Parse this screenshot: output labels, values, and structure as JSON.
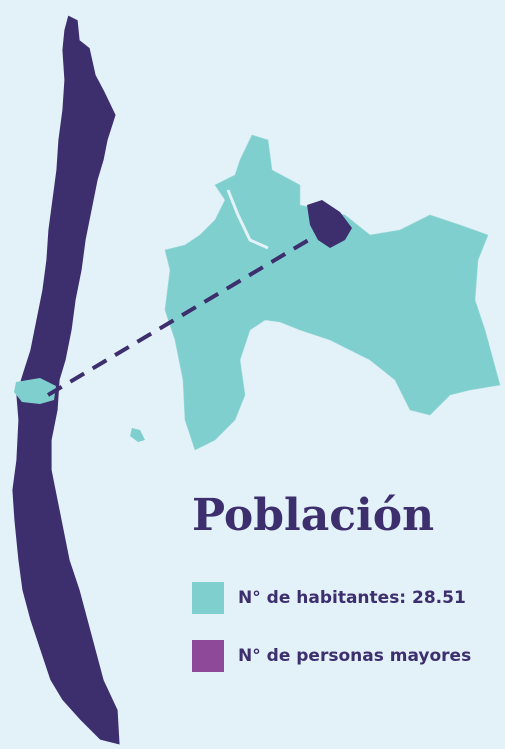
{
  "title": "Población",
  "legend": [
    {
      "label": "N° de habitantes: 28.51"
    },
    {
      "label": "N° de personas mayores"
    }
  ]
}
